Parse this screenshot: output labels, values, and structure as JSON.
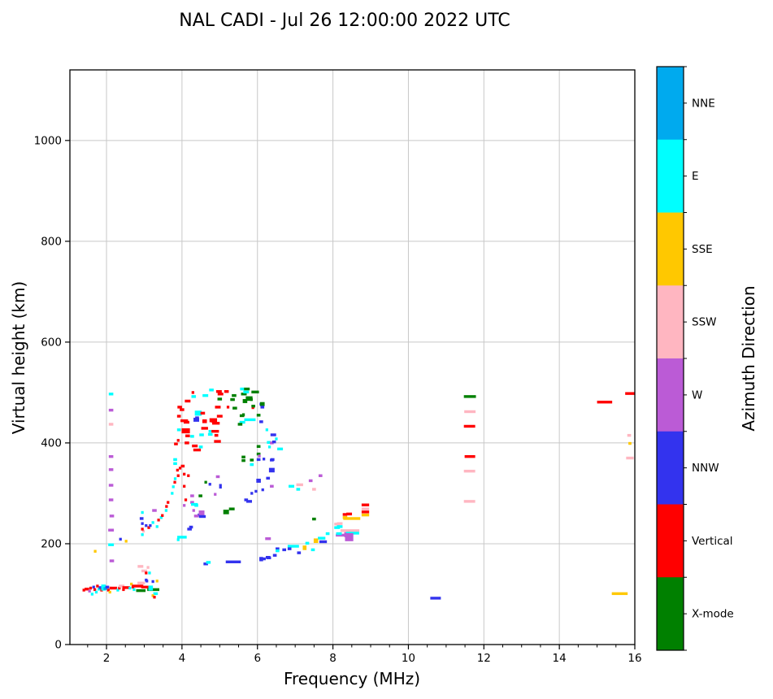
{
  "title": "NAL CADI - Jul 26 12:00:00 2022 UTC",
  "chart_data": {
    "type": "scatter",
    "title": "NAL CADI - Jul 26 12:00:00 2022 UTC",
    "xlabel": "Frequency (MHz)",
    "ylabel": "Virtual height (km)",
    "xlim": [
      1.03,
      16
    ],
    "ylim": [
      0,
      1140
    ],
    "xticks": [
      2,
      4,
      6,
      8,
      10,
      12,
      14,
      16
    ],
    "xminor_step": 0.5,
    "yticks": [
      0,
      200,
      400,
      600,
      800,
      1000
    ],
    "grid": true,
    "grid_color": "#c8c8c8",
    "colorbar": {
      "label": "Azimuth Direction",
      "segments": [
        {
          "label": "NNE",
          "color": "#00AAEE"
        },
        {
          "label": "E",
          "color": "#00FFFF"
        },
        {
          "label": "SSE",
          "color": "#FFC800"
        },
        {
          "label": "SSW",
          "color": "#FFB6C1"
        },
        {
          "label": "W",
          "color": "#BB5BD6"
        },
        {
          "label": "NNW",
          "color": "#3333EE"
        },
        {
          "label": "Vertical",
          "color": "#FF0000"
        },
        {
          "label": "X-mode",
          "color": "#008000"
        }
      ]
    },
    "point_colors": {
      "R": "#FF0000",
      "G": "#008000",
      "B": "#3333EE",
      "W": "#BB5BD6",
      "P": "#FFB6C1",
      "S": "#FFC800",
      "E": "#00FFFF",
      "N": "#00AAEE"
    },
    "points_format": "[freq_MHz, virtual_height_km, color_key, width_MHz(optional), height_km(optional)]",
    "points": [
      [
        1.4,
        108,
        "R"
      ],
      [
        1.48,
        110,
        "R",
        0.12
      ],
      [
        1.55,
        106,
        "W"
      ],
      [
        1.58,
        112,
        "R"
      ],
      [
        1.62,
        100,
        "E"
      ],
      [
        1.66,
        114,
        "B"
      ],
      [
        1.69,
        109,
        "R"
      ],
      [
        1.73,
        104,
        "E"
      ],
      [
        1.76,
        116,
        "R"
      ],
      [
        1.8,
        110,
        "E"
      ],
      [
        1.83,
        113,
        "B"
      ],
      [
        1.87,
        108,
        "R"
      ],
      [
        1.92,
        113,
        "E",
        0.12,
        12
      ],
      [
        1.97,
        111,
        "N",
        0.1
      ],
      [
        2.02,
        114,
        "B",
        0.1
      ],
      [
        2.05,
        108,
        "R"
      ],
      [
        2.09,
        104,
        "S"
      ],
      [
        2.12,
        112,
        "P"
      ],
      [
        2.18,
        112,
        "R",
        0.2
      ],
      [
        2.3,
        108,
        "E"
      ],
      [
        2.34,
        112,
        "R"
      ],
      [
        2.4,
        116,
        "P",
        0.15
      ],
      [
        2.45,
        109,
        "R"
      ],
      [
        2.52,
        113,
        "R",
        0.2
      ],
      [
        2.62,
        112,
        "E"
      ],
      [
        2.66,
        120,
        "S"
      ],
      [
        2.7,
        114,
        "R"
      ],
      [
        2.73,
        109,
        "E"
      ],
      [
        2.8,
        116,
        "R",
        0.25
      ],
      [
        2.92,
        122,
        "P",
        0.2
      ],
      [
        2.94,
        116,
        "R"
      ],
      [
        3.02,
        114,
        "R",
        0.2
      ],
      [
        3.05,
        128,
        "B"
      ],
      [
        2.91,
        107,
        "G",
        0.25
      ],
      [
        3.24,
        109,
        "G",
        0.32
      ],
      [
        3.17,
        112,
        "E",
        0.12,
        10
      ],
      [
        3.23,
        125,
        "B"
      ],
      [
        3.34,
        126,
        "S"
      ],
      [
        3.3,
        101,
        "E",
        0.12
      ],
      [
        3.23,
        97,
        "S"
      ],
      [
        3.27,
        94,
        "R"
      ],
      [
        1.7,
        185,
        "S"
      ],
      [
        2.12,
        497,
        "E",
        0.12
      ],
      [
        2.12,
        465,
        "W",
        0.12
      ],
      [
        2.12,
        437,
        "P",
        0.12
      ],
      [
        2.12,
        373,
        "W",
        0.12
      ],
      [
        2.12,
        347,
        "W",
        0.12
      ],
      [
        2.12,
        316,
        "W",
        0.12
      ],
      [
        2.12,
        287,
        "W",
        0.12
      ],
      [
        2.14,
        255,
        "W",
        0.12
      ],
      [
        2.12,
        227,
        "W",
        0.15
      ],
      [
        2.12,
        198,
        "E",
        0.15
      ],
      [
        2.14,
        166,
        "W",
        0.12
      ],
      [
        2.37,
        209,
        "B"
      ],
      [
        2.52,
        205,
        "S"
      ],
      [
        2.9,
        155,
        "P",
        0.15
      ],
      [
        3.0,
        146,
        "P",
        0.15
      ],
      [
        3.1,
        153,
        "P"
      ],
      [
        3.05,
        142,
        "R"
      ],
      [
        3.14,
        142,
        "E"
      ],
      [
        3.07,
        126,
        "B"
      ],
      [
        2.95,
        262,
        "E"
      ],
      [
        2.93,
        250,
        "B",
        0.1
      ],
      [
        2.95,
        240,
        "B"
      ],
      [
        2.98,
        225,
        "P"
      ],
      [
        2.95,
        218,
        "E"
      ],
      [
        2.95,
        229,
        "R"
      ],
      [
        3.05,
        236,
        "B"
      ],
      [
        3.12,
        232,
        "R"
      ],
      [
        3.16,
        236,
        "B"
      ],
      [
        3.23,
        242,
        "E"
      ],
      [
        3.34,
        234,
        "E"
      ],
      [
        3.38,
        247,
        "R"
      ],
      [
        3.27,
        266,
        "W",
        0.12
      ],
      [
        3.45,
        252,
        "E"
      ],
      [
        3.48,
        256,
        "R"
      ],
      [
        3.58,
        266,
        "E"
      ],
      [
        3.59,
        274,
        "R"
      ],
      [
        3.63,
        282,
        "R"
      ],
      [
        3.74,
        300,
        "E"
      ],
      [
        3.77,
        313,
        "E"
      ],
      [
        3.81,
        322,
        "R"
      ],
      [
        3.82,
        329,
        "E"
      ],
      [
        3.88,
        346,
        "R"
      ],
      [
        3.95,
        350,
        "R"
      ],
      [
        3.9,
        335,
        "R"
      ],
      [
        4.06,
        338,
        "R"
      ],
      [
        4.17,
        335,
        "R"
      ],
      [
        4.06,
        314,
        "R"
      ],
      [
        4.1,
        287,
        "R"
      ],
      [
        4.27,
        295,
        "W",
        0.1
      ],
      [
        4.27,
        282,
        "W",
        0.1
      ],
      [
        4.06,
        276,
        "W"
      ],
      [
        4.31,
        266,
        "W"
      ],
      [
        4.38,
        276,
        "E",
        0.1
      ],
      [
        4.49,
        295,
        "G",
        0.1
      ],
      [
        4.63,
        322,
        "G"
      ],
      [
        4.74,
        318,
        "B"
      ],
      [
        4.88,
        298,
        "W"
      ],
      [
        4.95,
        333,
        "W",
        0.1
      ],
      [
        5.02,
        314,
        "B",
        0.07,
        9
      ],
      [
        4.45,
        257,
        "B"
      ],
      [
        4.52,
        256,
        "B"
      ],
      [
        4.2,
        229,
        "B",
        0.12
      ],
      [
        4.0,
        213,
        "E",
        0.25
      ],
      [
        3.9,
        208,
        "E"
      ],
      [
        4.06,
        444,
        "R",
        0.2
      ],
      [
        4.38,
        446,
        "B",
        0.15,
        8
      ],
      [
        4.6,
        442,
        "R",
        0.12
      ],
      [
        4.9,
        439,
        "R",
        0.2
      ],
      [
        4.1,
        424,
        "R",
        0.22,
        10
      ],
      [
        3.92,
        426,
        "E",
        0.1
      ],
      [
        4.6,
        429,
        "R",
        0.18
      ],
      [
        4.88,
        423,
        "R",
        0.2
      ],
      [
        4.74,
        423,
        "E"
      ],
      [
        4.15,
        414,
        "R",
        0.12
      ],
      [
        4.27,
        413,
        "E",
        0.1
      ],
      [
        4.52,
        416,
        "E",
        0.12
      ],
      [
        4.75,
        417,
        "E",
        0.12
      ],
      [
        4.91,
        415,
        "R",
        0.1
      ],
      [
        3.9,
        405,
        "R"
      ],
      [
        4.13,
        400,
        "R",
        0.12
      ],
      [
        4.34,
        394,
        "R",
        0.15
      ],
      [
        4.5,
        392,
        "E",
        0.1
      ],
      [
        4.4,
        386,
        "R",
        0.2
      ],
      [
        4.94,
        403,
        "R",
        0.18
      ],
      [
        3.84,
        398,
        "R",
        0.1
      ],
      [
        3.82,
        367,
        "E",
        0.1
      ],
      [
        3.82,
        359,
        "E",
        0.1
      ],
      [
        4.02,
        354,
        "R",
        0.1
      ],
      [
        4.29,
        500,
        "R"
      ],
      [
        4.31,
        492,
        "E",
        0.12
      ],
      [
        4.62,
        494,
        "E",
        0.15
      ],
      [
        4.78,
        505,
        "E",
        0.12
      ],
      [
        4.98,
        502,
        "R",
        0.15
      ],
      [
        5.02,
        497,
        "R",
        0.15
      ],
      [
        5.0,
        487,
        "G",
        0.12
      ],
      [
        5.18,
        502,
        "R",
        0.12
      ],
      [
        5.22,
        471,
        "R"
      ],
      [
        4.95,
        471,
        "R",
        0.15
      ],
      [
        5.0,
        453,
        "R",
        0.15
      ],
      [
        4.83,
        445,
        "R",
        0.2,
        8
      ],
      [
        4.15,
        483,
        "R",
        0.15
      ],
      [
        3.94,
        471,
        "R",
        0.12
      ],
      [
        4.0,
        466,
        "R",
        0.12
      ],
      [
        3.92,
        453,
        "R",
        0.1
      ],
      [
        4.12,
        441,
        "R",
        0.15
      ],
      [
        4.43,
        459,
        "E",
        0.18,
        10
      ],
      [
        4.4,
        449,
        "B",
        0.1,
        7
      ],
      [
        4.55,
        459,
        "R",
        0.12
      ],
      [
        4.6,
        444,
        "R",
        0.12
      ],
      [
        4.84,
        443,
        "R",
        0.12
      ],
      [
        5.38,
        494,
        "G",
        0.12
      ],
      [
        5.6,
        507,
        "E",
        0.12
      ],
      [
        5.72,
        507,
        "G",
        0.15
      ],
      [
        5.64,
        497,
        "G",
        0.15
      ],
      [
        5.67,
        483,
        "G",
        0.12,
        8
      ],
      [
        5.34,
        486,
        "G",
        0.12
      ],
      [
        5.4,
        469,
        "G",
        0.12
      ],
      [
        5.59,
        454,
        "G",
        0.12
      ],
      [
        5.84,
        486,
        "G"
      ],
      [
        5.6,
        441,
        "E",
        0.15
      ],
      [
        5.54,
        437,
        "G",
        0.12
      ],
      [
        6.09,
        477,
        "B"
      ],
      [
        5.88,
        470,
        "R"
      ],
      [
        5.7,
        501,
        "E",
        0.15
      ],
      [
        5.94,
        501,
        "G",
        0.2
      ],
      [
        5.78,
        488,
        "G",
        0.18,
        9
      ],
      [
        5.89,
        473,
        "G",
        0.1
      ],
      [
        6.13,
        477,
        "G",
        0.12,
        8
      ],
      [
        6.13,
        471,
        "B",
        0.1
      ],
      [
        6.03,
        455,
        "G",
        0.1
      ],
      [
        5.8,
        446,
        "E",
        0.3
      ],
      [
        5.63,
        456,
        "G"
      ],
      [
        6.1,
        442,
        "B",
        0.1
      ],
      [
        6.25,
        426,
        "E"
      ],
      [
        6.42,
        416,
        "B",
        0.15
      ],
      [
        6.5,
        408,
        "E"
      ],
      [
        6.3,
        401,
        "E",
        0.1
      ],
      [
        6.38,
        400,
        "W",
        0.1
      ],
      [
        6.44,
        402,
        "B",
        0.1
      ],
      [
        6.32,
        392,
        "E"
      ],
      [
        6.6,
        388,
        "E",
        0.15
      ],
      [
        6.03,
        393,
        "G",
        0.1
      ],
      [
        6.03,
        378,
        "G",
        0.1
      ],
      [
        6.05,
        374,
        "W"
      ],
      [
        5.63,
        372,
        "G",
        0.1
      ],
      [
        5.63,
        365,
        "G",
        0.1
      ],
      [
        6.03,
        367,
        "B",
        0.1
      ],
      [
        6.4,
        367,
        "B",
        0.1
      ],
      [
        5.85,
        366,
        "G",
        0.1
      ],
      [
        5.85,
        357,
        "E",
        0.1
      ],
      [
        6.17,
        368,
        "B"
      ],
      [
        6.38,
        366,
        "B",
        0.1
      ],
      [
        6.38,
        346,
        "B",
        0.15,
        9
      ],
      [
        6.03,
        325,
        "B",
        0.12,
        8
      ],
      [
        6.28,
        330,
        "B",
        0.1
      ],
      [
        6.38,
        314,
        "W",
        0.1
      ],
      [
        5.85,
        300,
        "B"
      ],
      [
        5.96,
        304,
        "B"
      ],
      [
        6.14,
        307,
        "B"
      ],
      [
        5.7,
        287,
        "B",
        0.1
      ],
      [
        6.9,
        314,
        "E",
        0.15
      ],
      [
        7.08,
        308,
        "E",
        0.1
      ],
      [
        7.12,
        317,
        "P",
        0.18
      ],
      [
        7.41,
        325,
        "W",
        0.1
      ],
      [
        7.67,
        335,
        "W",
        0.1
      ],
      [
        7.5,
        308,
        "P",
        0.1
      ],
      [
        7.5,
        249,
        "G",
        0.1
      ],
      [
        8.32,
        258,
        "R",
        0.12
      ],
      [
        8.32,
        252,
        "S",
        0.12
      ],
      [
        8.11,
        239,
        "P",
        0.15
      ],
      [
        8.11,
        232,
        "E",
        0.15
      ],
      [
        7.86,
        220,
        "E",
        0.1
      ],
      [
        8.2,
        217,
        "W",
        0.25
      ],
      [
        8.35,
        218,
        "W",
        0.1,
        10
      ],
      [
        7.7,
        211,
        "E",
        0.2
      ],
      [
        7.74,
        204,
        "B",
        0.2
      ],
      [
        7.55,
        206,
        "S",
        0.12,
        9
      ],
      [
        7.32,
        201,
        "E",
        0.1
      ],
      [
        6.95,
        195,
        "E",
        0.3
      ],
      [
        7.25,
        192,
        "S",
        0.1,
        9
      ],
      [
        6.85,
        190,
        "B",
        0.1
      ],
      [
        6.71,
        188,
        "B",
        0.1
      ],
      [
        6.53,
        190,
        "B",
        0.1
      ],
      [
        6.53,
        186,
        "E",
        0.1
      ],
      [
        7.47,
        188,
        "E",
        0.1
      ],
      [
        7.1,
        182,
        "B",
        0.1
      ],
      [
        6.46,
        177,
        "B",
        0.1
      ],
      [
        6.28,
        173,
        "B",
        0.12
      ],
      [
        6.1,
        171,
        "B",
        0.1
      ],
      [
        4.33,
        278,
        "E",
        0.18
      ],
      [
        5.78,
        284,
        "B",
        0.15
      ],
      [
        4.52,
        261,
        "W",
        0.15,
        10
      ],
      [
        4.38,
        255,
        "W",
        0.12
      ],
      [
        4.54,
        254,
        "B",
        0.18
      ],
      [
        5.17,
        263,
        "G",
        0.15,
        9
      ],
      [
        5.32,
        269,
        "G",
        0.15
      ],
      [
        4.24,
        233,
        "B",
        0.1
      ],
      [
        6.28,
        210,
        "W",
        0.15
      ],
      [
        6.1,
        168,
        "B",
        0.1
      ],
      [
        6.17,
        170,
        "B",
        0.1
      ],
      [
        6.3,
        172,
        "B",
        0.12
      ],
      [
        5.36,
        164,
        "B",
        0.4
      ],
      [
        4.63,
        160,
        "B",
        0.12
      ],
      [
        4.7,
        163,
        "E",
        0.12
      ],
      [
        8.86,
        277,
        "R",
        0.2
      ],
      [
        8.86,
        269,
        "P",
        0.2
      ],
      [
        8.86,
        263,
        "R",
        0.2
      ],
      [
        8.86,
        257,
        "S",
        0.2
      ],
      [
        8.43,
        259,
        "R",
        0.15
      ],
      [
        8.5,
        250,
        "S",
        0.45
      ],
      [
        8.18,
        240,
        "P",
        0.15
      ],
      [
        8.18,
        234,
        "E",
        0.15
      ],
      [
        8.45,
        226,
        "P",
        0.5
      ],
      [
        8.52,
        221,
        "E",
        0.35
      ],
      [
        8.16,
        220,
        "E",
        0.15
      ],
      [
        8.43,
        213,
        "W",
        0.22,
        16
      ],
      [
        11.63,
        492,
        "G",
        0.32
      ],
      [
        11.63,
        462,
        "P",
        0.3
      ],
      [
        11.62,
        433,
        "R",
        0.3
      ],
      [
        11.63,
        373,
        "R",
        0.28
      ],
      [
        11.62,
        344,
        "P",
        0.3
      ],
      [
        11.62,
        284,
        "P",
        0.3
      ],
      [
        15.2,
        481,
        "R",
        0.4
      ],
      [
        15.87,
        498,
        "R",
        0.25
      ],
      [
        15.85,
        415,
        "P",
        0.1
      ],
      [
        15.87,
        399,
        "S",
        0.08
      ],
      [
        15.87,
        370,
        "P",
        0.2
      ],
      [
        15.6,
        101,
        "S",
        0.42
      ],
      [
        10.72,
        92,
        "B",
        0.28
      ]
    ]
  }
}
